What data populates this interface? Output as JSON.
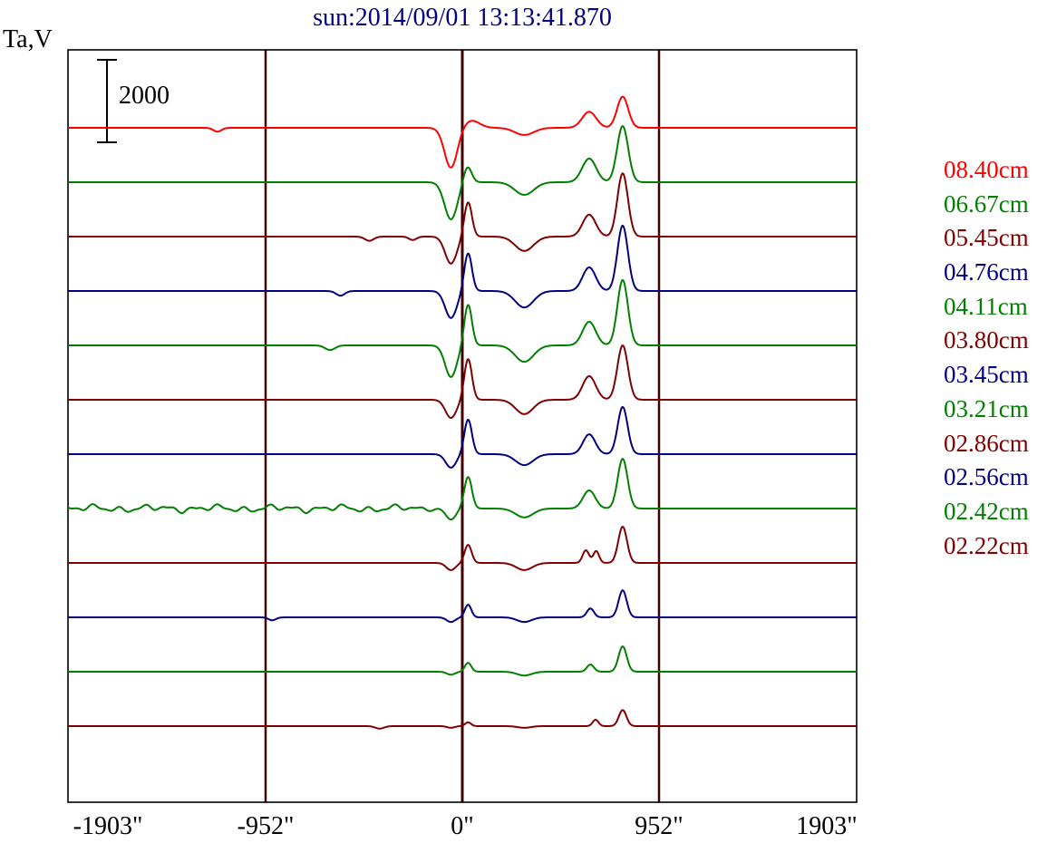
{
  "title": {
    "text": "sun:2014/09/01 13:13:41.870",
    "color": "#000080"
  },
  "y_axis_label": "Ta,V",
  "scale_bar": {
    "label": "2000",
    "volts": 2000
  },
  "x_axis": {
    "tick_labels": [
      "-1903\"",
      "-952\"",
      "0\"",
      "952\"",
      "1903\""
    ],
    "tick_values": [
      -1903,
      -952,
      0,
      952,
      1903
    ],
    "gridline_values": [
      -952,
      0,
      952
    ],
    "gridline_color": "#400000"
  },
  "chart_data": {
    "type": "line",
    "title": "sun:2014/09/01 13:13:41.870",
    "ylabel": "Ta,V",
    "x_unit": "arcsec",
    "x_range": [
      -1908,
      1908
    ],
    "x_ticks": [
      -1903,
      -952,
      0,
      952,
      1903
    ],
    "scale_bar_volts": 2000,
    "legend_position": "right",
    "grid": "vertical-lines-at--952-0-952",
    "series_note": "stacked drift scans, offset vertically, top to bottom; features_xwa are gaussian components [center_arcsec, width_arcsec, amplitude_volts]",
    "series": [
      {
        "name": "08.40cm",
        "color": "#ff0000",
        "noise_v": 0,
        "features_xwa": [
          [
            -1185,
            28,
            -90
          ],
          [
            -55,
            44,
            -950
          ],
          [
            45,
            55,
            170
          ],
          [
            300,
            65,
            -170
          ],
          [
            614,
            48,
            380
          ],
          [
            776,
            38,
            740
          ]
        ]
      },
      {
        "name": "06.67cm",
        "color": "#008000",
        "noise_v": 0,
        "features_xwa": [
          [
            -55,
            44,
            -880
          ],
          [
            25,
            28,
            380
          ],
          [
            300,
            65,
            -300
          ],
          [
            614,
            48,
            560
          ],
          [
            776,
            38,
            1330
          ]
        ]
      },
      {
        "name": "05.45cm",
        "color": "#800000",
        "noise_v": 0,
        "features_xwa": [
          [
            -450,
            30,
            -100
          ],
          [
            -240,
            26,
            -80
          ],
          [
            -55,
            40,
            -640
          ],
          [
            28,
            26,
            820
          ],
          [
            300,
            63,
            -340
          ],
          [
            614,
            45,
            520
          ],
          [
            776,
            36,
            1500
          ]
        ]
      },
      {
        "name": "04.76cm",
        "color": "#000080",
        "noise_v": 0,
        "features_xwa": [
          [
            -590,
            30,
            -110
          ],
          [
            -55,
            40,
            -640
          ],
          [
            28,
            26,
            900
          ],
          [
            300,
            63,
            -390
          ],
          [
            614,
            45,
            560
          ],
          [
            776,
            36,
            1550
          ]
        ]
      },
      {
        "name": "04.11cm",
        "color": "#008000",
        "noise_v": 0,
        "features_xwa": [
          [
            -640,
            34,
            -110
          ],
          [
            -55,
            40,
            -750
          ],
          [
            28,
            26,
            970
          ],
          [
            300,
            63,
            -390
          ],
          [
            614,
            45,
            560
          ],
          [
            776,
            36,
            1550
          ]
        ]
      },
      {
        "name": "03.80cm",
        "color": "#800000",
        "noise_v": 0,
        "features_xwa": [
          [
            -55,
            38,
            -430
          ],
          [
            28,
            26,
            970
          ],
          [
            300,
            60,
            -340
          ],
          [
            614,
            45,
            560
          ],
          [
            776,
            36,
            1290
          ]
        ]
      },
      {
        "name": "03.45cm",
        "color": "#000080",
        "noise_v": 0,
        "features_xwa": [
          [
            -55,
            36,
            -320
          ],
          [
            28,
            26,
            820
          ],
          [
            300,
            60,
            -260
          ],
          [
            614,
            42,
            470
          ],
          [
            776,
            34,
            1120
          ]
        ]
      },
      {
        "name": "03.21cm",
        "color": "#008000",
        "noise_v": 70,
        "features_xwa": [
          [
            -55,
            34,
            -260
          ],
          [
            28,
            26,
            750
          ],
          [
            300,
            60,
            -210
          ],
          [
            614,
            42,
            430
          ],
          [
            776,
            34,
            1180
          ]
        ]
      },
      {
        "name": "02.86cm",
        "color": "#800000",
        "noise_v": 0,
        "features_xwa": [
          [
            -55,
            32,
            -170
          ],
          [
            28,
            24,
            430
          ],
          [
            300,
            55,
            -170
          ],
          [
            598,
            22,
            300
          ],
          [
            648,
            20,
            280
          ],
          [
            776,
            30,
            860
          ]
        ]
      },
      {
        "name": "02.56cm",
        "color": "#000080",
        "noise_v": 0,
        "features_xwa": [
          [
            -920,
            26,
            -70
          ],
          [
            -55,
            30,
            -110
          ],
          [
            28,
            22,
            300
          ],
          [
            300,
            50,
            -110
          ],
          [
            620,
            24,
            210
          ],
          [
            776,
            28,
            640
          ]
        ]
      },
      {
        "name": "02.42cm",
        "color": "#008000",
        "noise_v": 0,
        "features_xwa": [
          [
            -55,
            28,
            -70
          ],
          [
            28,
            22,
            210
          ],
          [
            300,
            50,
            -90
          ],
          [
            620,
            24,
            170
          ],
          [
            776,
            28,
            600
          ]
        ]
      },
      {
        "name": "02.22cm",
        "color": "#800000",
        "noise_v": 0,
        "features_xwa": [
          [
            -400,
            30,
            -60
          ],
          [
            -55,
            26,
            -40
          ],
          [
            28,
            20,
            90
          ],
          [
            300,
            45,
            -40
          ],
          [
            645,
            20,
            150
          ],
          [
            776,
            26,
            380
          ]
        ]
      }
    ]
  }
}
